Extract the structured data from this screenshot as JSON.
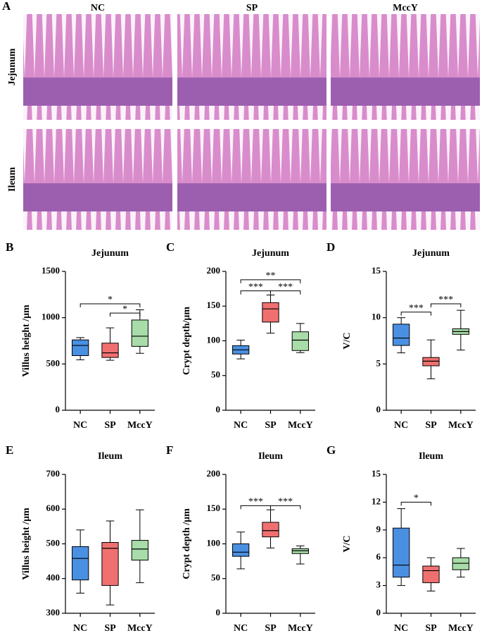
{
  "histology": {
    "label": "A",
    "columns": [
      "NC",
      "SP",
      "MccY"
    ],
    "rows": [
      "Jejunum",
      "Ileum"
    ]
  },
  "chart_data": [
    {
      "type": "box",
      "label": "B",
      "title": "Jejunum",
      "y_label": "Villus height /μm",
      "categories": [
        "NC",
        "SP",
        "MccY"
      ],
      "colors": [
        "#4a90e2",
        "#f07070",
        "#a8dca8"
      ],
      "boxes": [
        {
          "min": 545,
          "q1": 590,
          "median": 700,
          "q3": 760,
          "max": 785
        },
        {
          "min": 540,
          "q1": 570,
          "median": 620,
          "q3": 725,
          "max": 890
        },
        {
          "min": 615,
          "q1": 690,
          "median": 800,
          "q3": 975,
          "max": 1085
        }
      ],
      "ylim": [
        0,
        1500
      ],
      "yticks": [
        0,
        500,
        1000,
        1500
      ],
      "annotations": [
        {
          "pair": [
            0,
            2
          ],
          "y": 1150,
          "text": "*"
        },
        {
          "pair": [
            1,
            2
          ],
          "y": 1050,
          "text": "*"
        }
      ]
    },
    {
      "type": "box",
      "label": "C",
      "title": "Jejunum",
      "y_label": "Crypt depth/μm",
      "categories": [
        "NC",
        "SP",
        "MccY"
      ],
      "colors": [
        "#4a90e2",
        "#f07070",
        "#a8dca8"
      ],
      "boxes": [
        {
          "min": 74,
          "q1": 81,
          "median": 87,
          "q3": 93,
          "max": 101
        },
        {
          "min": 111,
          "q1": 127,
          "median": 146,
          "q3": 155,
          "max": 166
        },
        {
          "min": 83,
          "q1": 86,
          "median": 101,
          "q3": 113,
          "max": 125
        }
      ],
      "ylim": [
        0,
        200
      ],
      "yticks": [
        0,
        50,
        100,
        150,
        200
      ],
      "annotations": [
        {
          "pair": [
            0,
            1
          ],
          "y": 172,
          "text": "***"
        },
        {
          "pair": [
            1,
            2
          ],
          "y": 172,
          "text": "***"
        },
        {
          "pair": [
            0,
            2
          ],
          "y": 188,
          "text": "**"
        }
      ]
    },
    {
      "type": "box",
      "label": "D",
      "title": "Jejunum",
      "y_label": "V/C",
      "categories": [
        "NC",
        "SP",
        "MccY"
      ],
      "colors": [
        "#4a90e2",
        "#f07070",
        "#a8dca8"
      ],
      "boxes": [
        {
          "min": 6.2,
          "q1": 7.0,
          "median": 7.8,
          "q3": 9.3,
          "max": 10.0
        },
        {
          "min": 3.4,
          "q1": 4.8,
          "median": 5.3,
          "q3": 5.7,
          "max": 7.6
        },
        {
          "min": 6.5,
          "q1": 8.2,
          "median": 8.5,
          "q3": 8.8,
          "max": 10.8
        }
      ],
      "ylim": [
        0,
        15
      ],
      "yticks": [
        0,
        5,
        10,
        15
      ],
      "annotations": [
        {
          "pair": [
            0,
            1
          ],
          "y": 10.6,
          "text": "***"
        },
        {
          "pair": [
            1,
            2
          ],
          "y": 11.5,
          "text": "***"
        }
      ]
    },
    {
      "type": "box",
      "label": "E",
      "title": "Ileum",
      "y_label": "Villus height /μm",
      "categories": [
        "NC",
        "SP",
        "MccY"
      ],
      "colors": [
        "#4a90e2",
        "#f07070",
        "#a8dca8"
      ],
      "boxes": [
        {
          "min": 358,
          "q1": 396,
          "median": 458,
          "q3": 492,
          "max": 540
        },
        {
          "min": 324,
          "q1": 380,
          "median": 487,
          "q3": 504,
          "max": 566
        },
        {
          "min": 388,
          "q1": 453,
          "median": 485,
          "q3": 510,
          "max": 598
        }
      ],
      "ylim": [
        300,
        700
      ],
      "yticks": [
        300,
        400,
        500,
        600,
        700
      ],
      "annotations": []
    },
    {
      "type": "box",
      "label": "F",
      "title": "Ileum",
      "y_label": "Crypt depth /μm",
      "categories": [
        "NC",
        "SP",
        "MccY"
      ],
      "colors": [
        "#4a90e2",
        "#f07070",
        "#a8dca8"
      ],
      "boxes": [
        {
          "min": 64,
          "q1": 82,
          "median": 88,
          "q3": 100,
          "max": 117
        },
        {
          "min": 94,
          "q1": 110,
          "median": 119,
          "q3": 131,
          "max": 149
        },
        {
          "min": 71,
          "q1": 86,
          "median": 90,
          "q3": 93,
          "max": 97
        }
      ],
      "ylim": [
        0,
        200
      ],
      "yticks": [
        0,
        50,
        100,
        150,
        200
      ],
      "annotations": [
        {
          "pair": [
            0,
            1
          ],
          "y": 155,
          "text": "***"
        },
        {
          "pair": [
            1,
            2
          ],
          "y": 155,
          "text": "***"
        }
      ]
    },
    {
      "type": "box",
      "label": "G",
      "title": "Ileum",
      "y_label": "V/C",
      "categories": [
        "NC",
        "SP",
        "MccY"
      ],
      "colors": [
        "#4a90e2",
        "#f07070",
        "#a8dca8"
      ],
      "boxes": [
        {
          "min": 3.0,
          "q1": 3.9,
          "median": 5.2,
          "q3": 9.2,
          "max": 11.3
        },
        {
          "min": 2.4,
          "q1": 3.3,
          "median": 4.6,
          "q3": 5.1,
          "max": 6.0
        },
        {
          "min": 3.9,
          "q1": 4.7,
          "median": 5.4,
          "q3": 6.0,
          "max": 7.0
        }
      ],
      "ylim": [
        0,
        15
      ],
      "yticks": [
        0,
        3,
        6,
        9,
        12,
        15
      ],
      "annotations": [
        {
          "pair": [
            0,
            1
          ],
          "y": 12,
          "text": "*"
        }
      ]
    }
  ]
}
